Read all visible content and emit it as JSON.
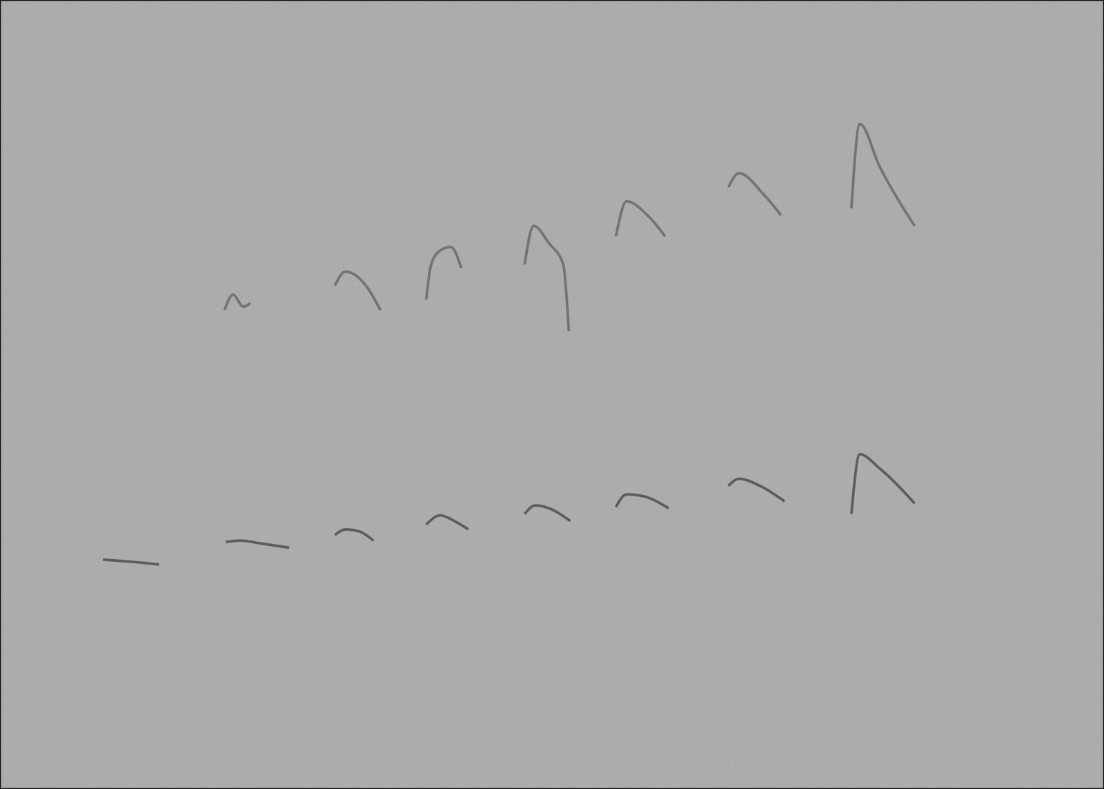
{
  "chart_data": {
    "type": "line",
    "xlim": [
      0,
      1568
    ],
    "ylim": [
      0,
      1120
    ],
    "grid": false,
    "tick_labels": false,
    "series": [
      {
        "color": "#4a4a4a",
        "x": [
          145,
          185,
          225,
          270,
          320,
          340,
          370,
          410,
          440,
          475,
          490,
          510,
          530,
          570,
          605,
          625,
          645,
          665,
          700,
          745,
          760,
          780,
          810,
          840,
          875,
          890,
          915,
          950,
          990,
          1035,
          1050,
          1080,
          1115,
          1160,
          1210,
          1222,
          1250,
          1300
        ],
        "values": [
          325,
          322,
          318,
          null,
          350,
          352,
          348,
          342,
          null,
          360,
          368,
          365,
          352,
          null,
          375,
          388,
          380,
          368,
          null,
          390,
          402,
          398,
          380,
          null,
          400,
          418,
          415,
          398,
          null,
          430,
          440,
          430,
          408,
          null,
          390,
          475,
          455,
          405
        ]
      },
      {
        "color": "#666666",
        "x": [
          318,
          330,
          345,
          355,
          420,
          475,
          490,
          515,
          540,
          570,
          605,
          612,
          625,
          640,
          655,
          700,
          745,
          758,
          780,
          800,
          808,
          840,
          875,
          890,
          920,
          945,
          990,
          1035,
          1050,
          1085,
          1110,
          1160,
          1210,
          1222,
          1250,
          1300
        ],
        "values": [
          680,
          702,
          685,
          690,
          null,
          715,
          735,
          720,
          680,
          null,
          695,
          745,
          765,
          770,
          740,
          null,
          745,
          800,
          775,
          745,
          650,
          null,
          785,
          835,
          815,
          785,
          null,
          855,
          875,
          845,
          815,
          null,
          825,
          945,
          885,
          800
        ]
      }
    ]
  }
}
